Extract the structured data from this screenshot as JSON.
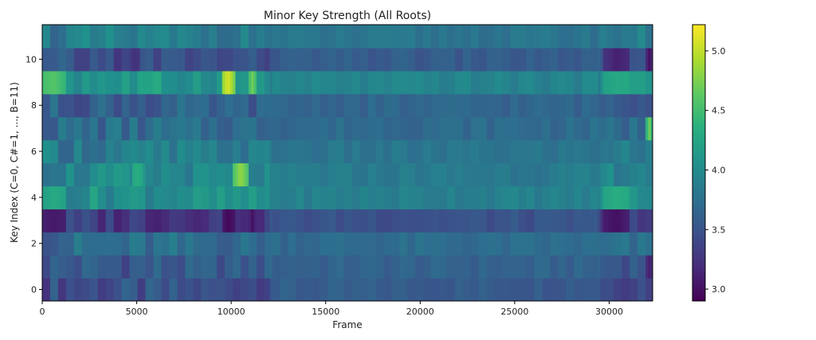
{
  "chart_data": {
    "type": "heatmap",
    "title": "Minor Key Strength (All Roots)",
    "xlabel": "Frame",
    "ylabel": "Key Index (C=0, C#=1, ..., B=11)",
    "xlim": [
      0,
      32300
    ],
    "ylim": [
      -0.5,
      11.5
    ],
    "x_ticks": [
      0,
      5000,
      10000,
      15000,
      20000,
      25000,
      30000
    ],
    "y_ticks": [
      0,
      2,
      4,
      6,
      8,
      10
    ],
    "colormap": "viridis",
    "colorbar": {
      "vmin": 2.9,
      "vmax": 5.22,
      "ticks": [
        3.0,
        3.5,
        4.0,
        4.5,
        5.0
      ],
      "tick_labels": [
        "3.0",
        "3.5",
        "4.0",
        "4.5",
        "5.0"
      ]
    },
    "rows": 12,
    "row_profile": [
      3.45,
      3.55,
      3.7,
      3.3,
      4.05,
      3.95,
      3.85,
      3.7,
      3.6,
      4.1,
      3.45,
      3.85
    ],
    "highlights": [
      {
        "x": [
          9500,
          10150
        ],
        "key": 9,
        "value": 5.1
      },
      {
        "x": [
          10950,
          11300
        ],
        "key": 9,
        "value": 4.7
      },
      {
        "x": [
          10150,
          10850
        ],
        "key": 5,
        "value": 4.85
      },
      {
        "x": [
          31950,
          32300
        ],
        "key": 7,
        "value": 4.7
      },
      {
        "x": [
          29700,
          31100
        ],
        "key": 9,
        "value": 4.3
      },
      {
        "x": [
          29700,
          31100
        ],
        "key": 4,
        "value": 4.35
      },
      {
        "x": [
          29700,
          31100
        ],
        "key": 3,
        "value": 3.0
      },
      {
        "x": [
          29700,
          31100
        ],
        "key": 10,
        "value": 3.1
      },
      {
        "x": [
          9500,
          10150
        ],
        "key": 3,
        "value": 2.95
      },
      {
        "x": [
          10950,
          11300
        ],
        "key": 3,
        "value": 3.0
      },
      {
        "x": [
          0,
          1200
        ],
        "key": 9,
        "value": 4.6
      },
      {
        "x": [
          0,
          1200
        ],
        "key": 4,
        "value": 4.3
      },
      {
        "x": [
          4700,
          5300
        ],
        "key": 5,
        "value": 4.35
      },
      {
        "x": [
          4600,
          5200
        ],
        "key": 10,
        "value": 3.2
      },
      {
        "x": [
          0,
          1200
        ],
        "key": 3,
        "value": 3.05
      },
      {
        "x": [
          31950,
          32300
        ],
        "key": 10,
        "value": 3.0
      },
      {
        "x": [
          31950,
          32300
        ],
        "key": 1,
        "value": 3.1
      }
    ]
  }
}
